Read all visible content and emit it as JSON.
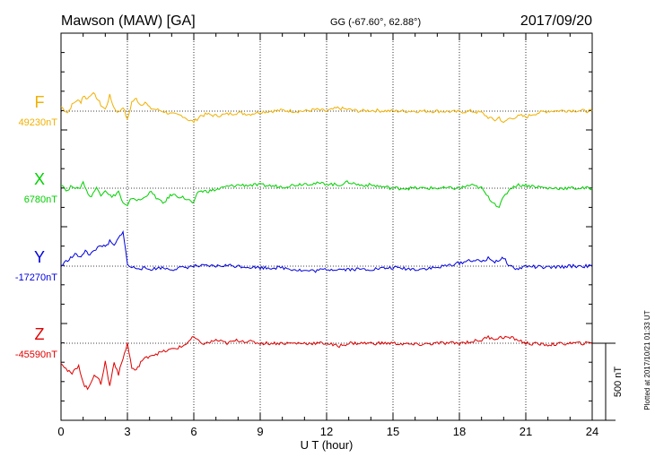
{
  "chart_data": {
    "type": "line",
    "title": "Mawson (MAW)  [GA]",
    "coords": "GG (-67.60°,  62.88°)",
    "date": "2017/09/20",
    "xlabel": "U T (hour)",
    "xlim": [
      0,
      24
    ],
    "xticks": [
      "0",
      "3",
      "6",
      "9",
      "12",
      "15",
      "18",
      "21",
      "24"
    ],
    "scale_label": "500 nT",
    "scale_nT": 500,
    "footer": "Plotted at 2017/10/21 01:33 UT",
    "grid": true,
    "series": [
      {
        "name": "F",
        "baseline": "49230nT",
        "color": "#f0b000",
        "points": [
          [
            0,
            30
          ],
          [
            0.3,
            -10
          ],
          [
            0.5,
            40
          ],
          [
            0.7,
            70
          ],
          [
            0.9,
            60
          ],
          [
            1.0,
            100
          ],
          [
            1.2,
            80
          ],
          [
            1.4,
            120
          ],
          [
            1.6,
            90
          ],
          [
            1.8,
            40
          ],
          [
            2.0,
            10
          ],
          [
            2.2,
            100
          ],
          [
            2.4,
            20
          ],
          [
            2.6,
            -10
          ],
          [
            2.8,
            30
          ],
          [
            3.0,
            -60
          ],
          [
            3.2,
            60
          ],
          [
            3.4,
            80
          ],
          [
            3.6,
            40
          ],
          [
            3.8,
            60
          ],
          [
            4.0,
            20
          ],
          [
            4.3,
            10
          ],
          [
            4.6,
            0
          ],
          [
            5.0,
            -20
          ],
          [
            5.5,
            -30
          ],
          [
            5.8,
            -60
          ],
          [
            6.0,
            -70
          ],
          [
            6.3,
            -30
          ],
          [
            6.6,
            -20
          ],
          [
            7.0,
            -30
          ],
          [
            7.5,
            -20
          ],
          [
            8.0,
            -10
          ],
          [
            8.5,
            -20
          ],
          [
            9.0,
            -5
          ],
          [
            9.5,
            0
          ],
          [
            10,
            5
          ],
          [
            10.5,
            0
          ],
          [
            11,
            0
          ],
          [
            11.5,
            10
          ],
          [
            12,
            0
          ],
          [
            12.5,
            20
          ],
          [
            13,
            10
          ],
          [
            13.5,
            0
          ],
          [
            14,
            5
          ],
          [
            15,
            0
          ],
          [
            16,
            0
          ],
          [
            17,
            0
          ],
          [
            18,
            -5
          ],
          [
            18.5,
            0
          ],
          [
            19,
            -10
          ],
          [
            19.3,
            -40
          ],
          [
            19.6,
            -60
          ],
          [
            19.8,
            -40
          ],
          [
            20.0,
            -80
          ],
          [
            20.2,
            -50
          ],
          [
            20.5,
            -40
          ],
          [
            20.8,
            -30
          ],
          [
            21.0,
            -40
          ],
          [
            21.3,
            -20
          ],
          [
            21.6,
            -10
          ],
          [
            22,
            0
          ],
          [
            23,
            5
          ],
          [
            24,
            0
          ]
        ]
      },
      {
        "name": "X",
        "baseline": "6780nT",
        "color": "#00d000",
        "points": [
          [
            0,
            30
          ],
          [
            0.3,
            -20
          ],
          [
            0.5,
            20
          ],
          [
            0.8,
            -10
          ],
          [
            1.0,
            40
          ],
          [
            1.3,
            -60
          ],
          [
            1.6,
            0
          ],
          [
            1.8,
            -40
          ],
          [
            2.0,
            -10
          ],
          [
            2.3,
            -60
          ],
          [
            2.6,
            -20
          ],
          [
            2.8,
            -100
          ],
          [
            3.0,
            -120
          ],
          [
            3.2,
            -60
          ],
          [
            3.5,
            -80
          ],
          [
            3.8,
            -60
          ],
          [
            4.0,
            -20
          ],
          [
            4.3,
            -60
          ],
          [
            4.6,
            -100
          ],
          [
            5.0,
            -40
          ],
          [
            5.5,
            -60
          ],
          [
            5.8,
            -80
          ],
          [
            6.0,
            -100
          ],
          [
            6.2,
            -20
          ],
          [
            6.6,
            -20
          ],
          [
            7,
            -10
          ],
          [
            7.5,
            10
          ],
          [
            8,
            20
          ],
          [
            9,
            20
          ],
          [
            10,
            10
          ],
          [
            11,
            30
          ],
          [
            12,
            30
          ],
          [
            12.5,
            20
          ],
          [
            13,
            40
          ],
          [
            13.5,
            20
          ],
          [
            14,
            20
          ],
          [
            15,
            0
          ],
          [
            16,
            0
          ],
          [
            17,
            0
          ],
          [
            18,
            0
          ],
          [
            18.5,
            20
          ],
          [
            19,
            0
          ],
          [
            19.3,
            -60
          ],
          [
            19.6,
            -100
          ],
          [
            19.8,
            -120
          ],
          [
            20.0,
            -60
          ],
          [
            20.3,
            0
          ],
          [
            20.6,
            20
          ],
          [
            21,
            20
          ],
          [
            22,
            0
          ],
          [
            23,
            0
          ],
          [
            24,
            0
          ]
        ]
      },
      {
        "name": "Y",
        "baseline": "-17270nT",
        "color": "#0000e0",
        "points": [
          [
            0,
            0
          ],
          [
            0.3,
            40
          ],
          [
            0.5,
            60
          ],
          [
            0.7,
            80
          ],
          [
            0.9,
            50
          ],
          [
            1.1,
            110
          ],
          [
            1.3,
            70
          ],
          [
            1.5,
            100
          ],
          [
            1.8,
            140
          ],
          [
            2.0,
            120
          ],
          [
            2.2,
            160
          ],
          [
            2.4,
            130
          ],
          [
            2.6,
            180
          ],
          [
            2.8,
            230
          ],
          [
            3.0,
            10
          ],
          [
            3.2,
            -10
          ],
          [
            3.5,
            -10
          ],
          [
            4,
            -20
          ],
          [
            4.5,
            -10
          ],
          [
            5,
            -20
          ],
          [
            5.5,
            -10
          ],
          [
            6,
            0
          ],
          [
            6.5,
            0
          ],
          [
            7,
            0
          ],
          [
            7.5,
            5
          ],
          [
            8,
            0
          ],
          [
            9,
            -10
          ],
          [
            10,
            -10
          ],
          [
            11,
            -30
          ],
          [
            11.5,
            -30
          ],
          [
            12,
            -20
          ],
          [
            13,
            -20
          ],
          [
            14,
            -20
          ],
          [
            15,
            -10
          ],
          [
            16,
            -20
          ],
          [
            17,
            -10
          ],
          [
            18,
            20
          ],
          [
            18.5,
            40
          ],
          [
            19,
            30
          ],
          [
            19.3,
            50
          ],
          [
            19.6,
            30
          ],
          [
            20,
            50
          ],
          [
            20.3,
            0
          ],
          [
            20.6,
            -20
          ],
          [
            21,
            0
          ],
          [
            22,
            -10
          ],
          [
            23,
            0
          ],
          [
            24,
            0
          ]
        ]
      },
      {
        "name": "Z",
        "baseline": "-45590nT",
        "color": "#e00000",
        "points": [
          [
            0,
            -120
          ],
          [
            0.3,
            -180
          ],
          [
            0.5,
            -200
          ],
          [
            0.8,
            -140
          ],
          [
            1.0,
            -260
          ],
          [
            1.2,
            -300
          ],
          [
            1.5,
            -200
          ],
          [
            1.8,
            -260
          ],
          [
            2.0,
            -120
          ],
          [
            2.2,
            -280
          ],
          [
            2.4,
            -120
          ],
          [
            2.6,
            -200
          ],
          [
            2.8,
            -100
          ],
          [
            3.0,
            0
          ],
          [
            3.2,
            -160
          ],
          [
            3.4,
            -180
          ],
          [
            3.6,
            -120
          ],
          [
            4.0,
            -80
          ],
          [
            4.5,
            -60
          ],
          [
            5,
            -40
          ],
          [
            5.5,
            -20
          ],
          [
            6,
            40
          ],
          [
            6.3,
            0
          ],
          [
            6.6,
            0
          ],
          [
            7,
            20
          ],
          [
            7.5,
            0
          ],
          [
            8,
            20
          ],
          [
            9,
            0
          ],
          [
            10,
            0
          ],
          [
            11,
            0
          ],
          [
            12,
            0
          ],
          [
            12.5,
            -20
          ],
          [
            13,
            0
          ],
          [
            14,
            0
          ],
          [
            15,
            0
          ],
          [
            16,
            -10
          ],
          [
            17,
            0
          ],
          [
            18,
            0
          ],
          [
            18.5,
            10
          ],
          [
            19,
            20
          ],
          [
            19.3,
            40
          ],
          [
            19.6,
            30
          ],
          [
            20,
            40
          ],
          [
            20.5,
            30
          ],
          [
            21,
            0
          ],
          [
            22,
            -10
          ],
          [
            23,
            0
          ],
          [
            24,
            0
          ]
        ]
      }
    ]
  }
}
